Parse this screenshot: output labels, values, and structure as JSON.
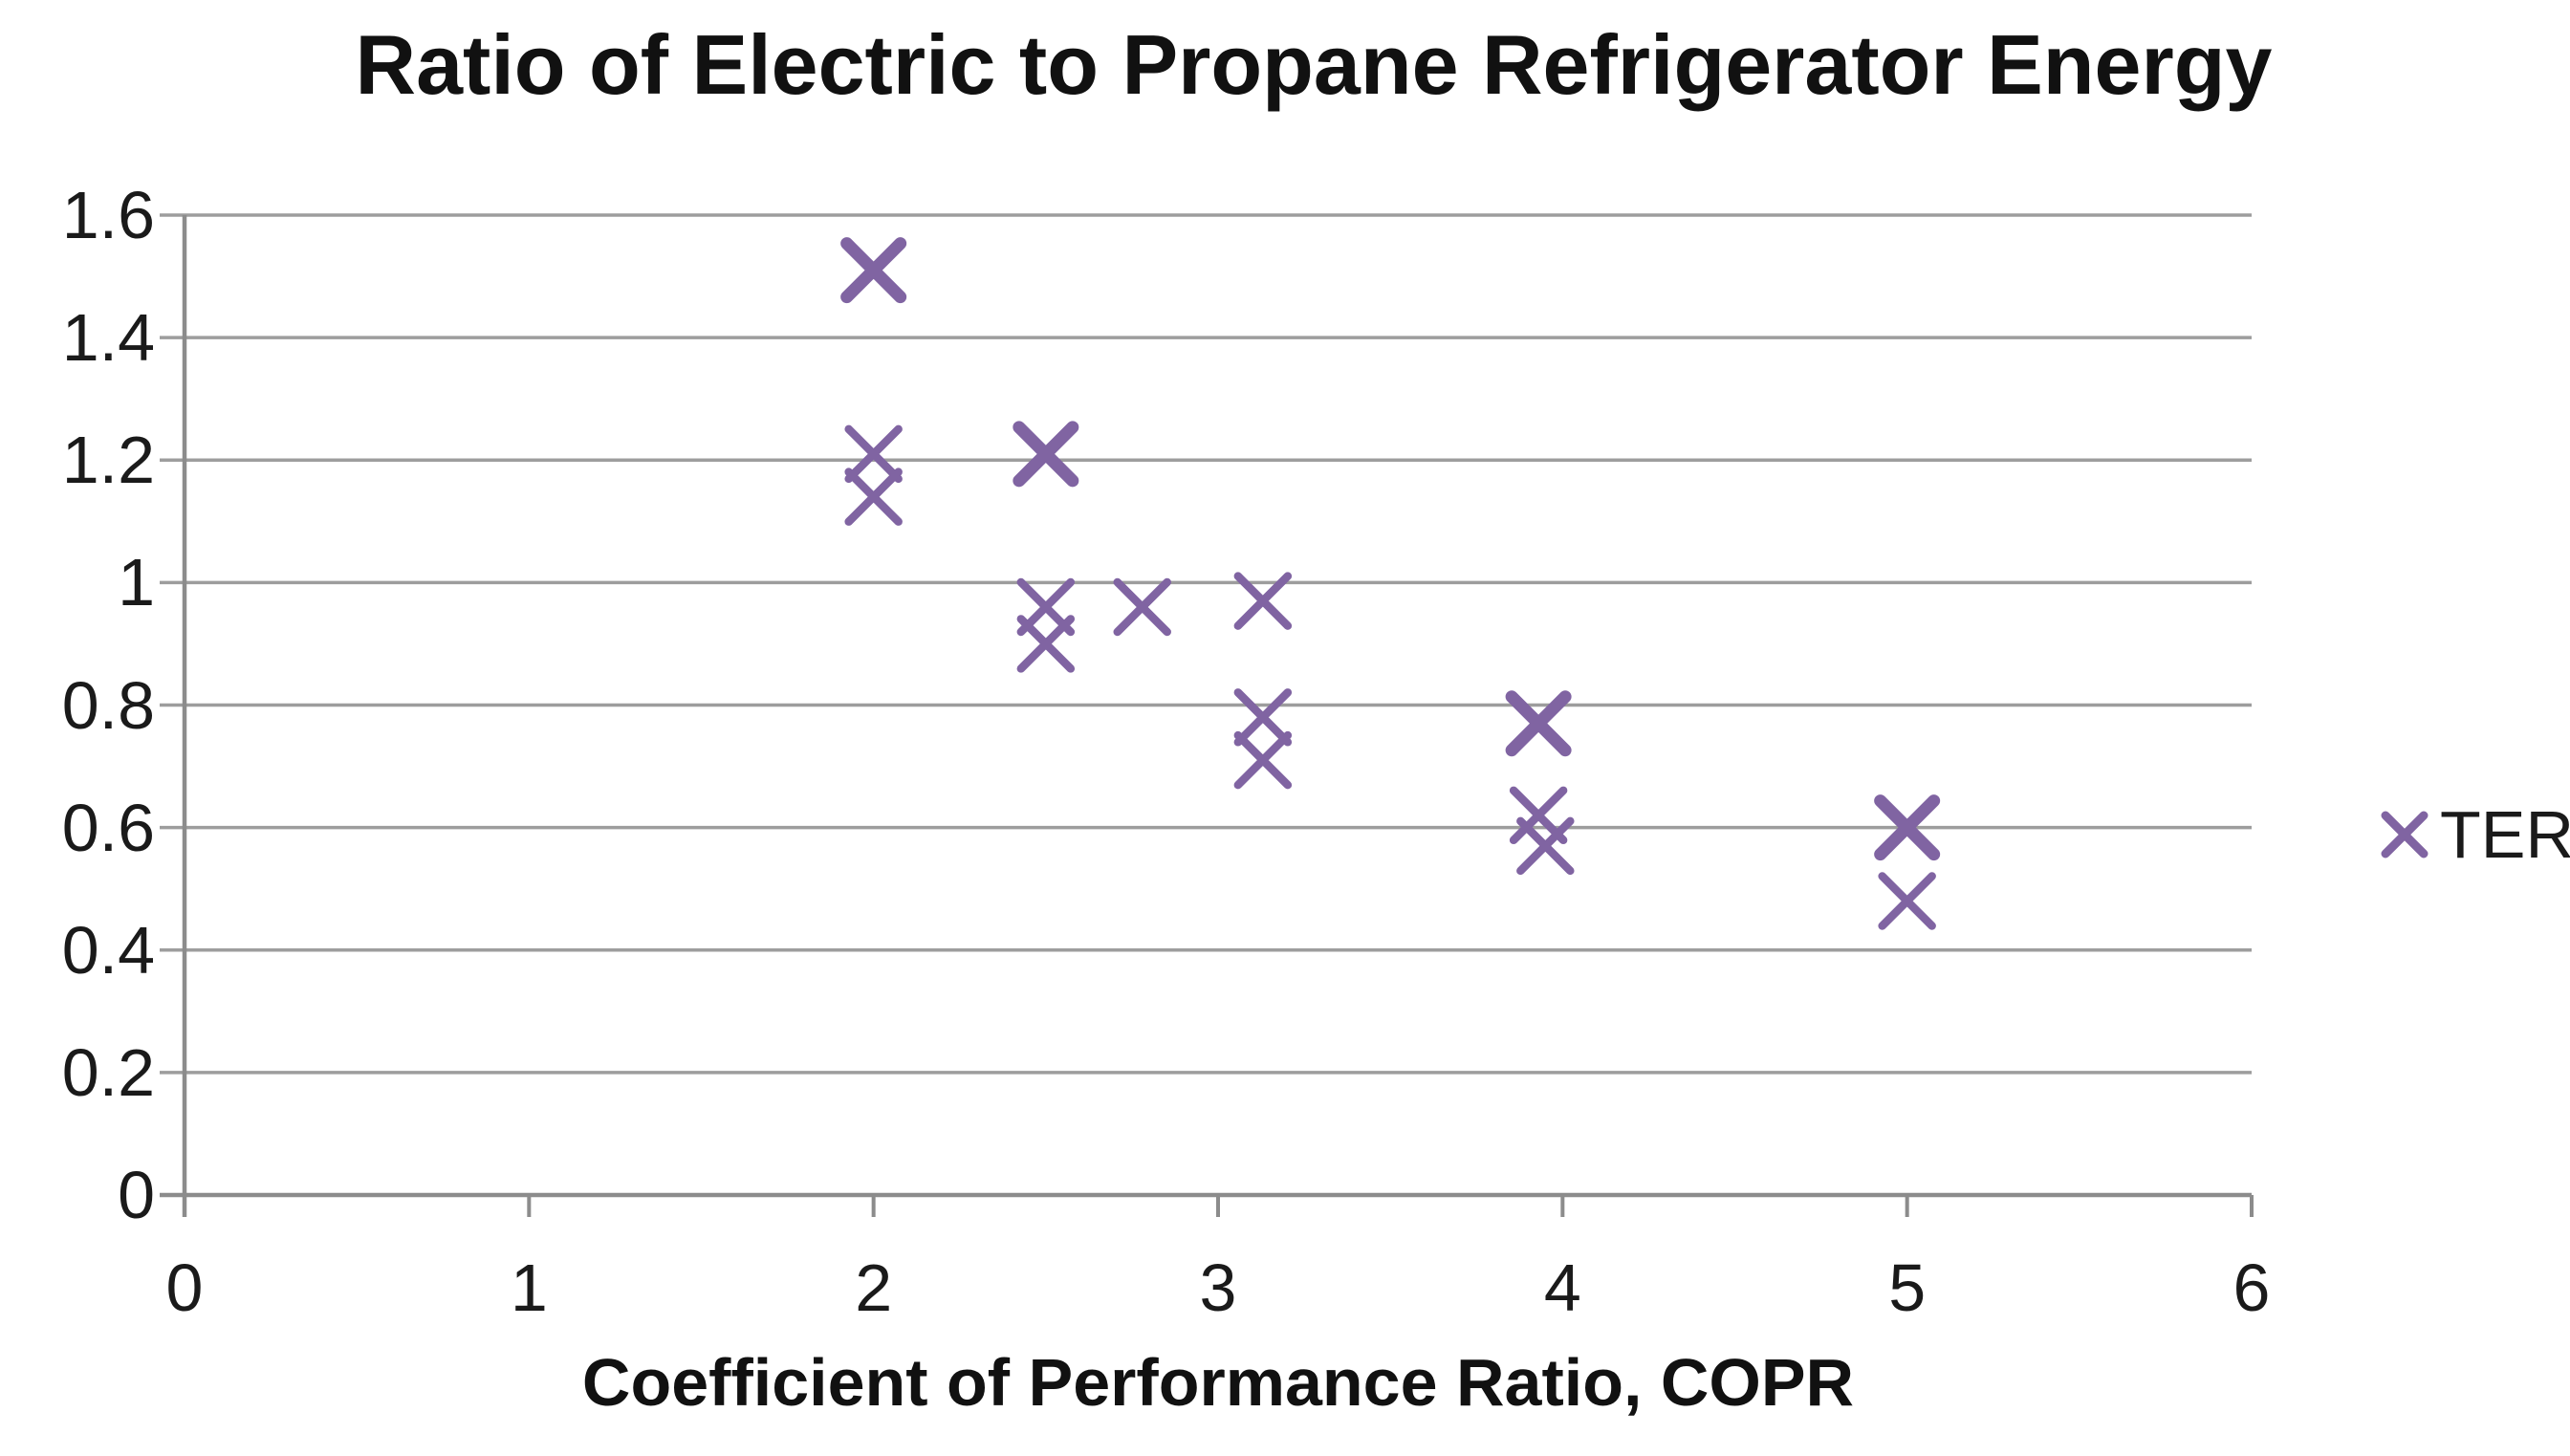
{
  "chart_data": {
    "type": "scatter",
    "title": "Ratio of Electric to Propane Refrigerator Energy",
    "xlabel": "Coefficient of Performance Ratio, COPR",
    "ylabel": "",
    "xlim": [
      0,
      6
    ],
    "ylim": [
      0,
      1.6
    ],
    "x_tick_labels": [
      "0",
      "1",
      "2",
      "3",
      "4",
      "5",
      "6"
    ],
    "x_tick_values": [
      0,
      1,
      2,
      3,
      4,
      5,
      6
    ],
    "y_tick_labels": [
      "0",
      "0.2",
      "0.4",
      "0.6",
      "0.8",
      "1",
      "1.2",
      "1.4",
      "1.6"
    ],
    "y_tick_values": [
      0,
      0.2,
      0.4,
      0.6,
      0.8,
      1,
      1.2,
      1.4,
      1.6
    ],
    "grid": "horizontal-only",
    "legend_position": "right",
    "series": [
      {
        "name": "TER",
        "marker": "x",
        "color": "#8064A2",
        "points": [
          {
            "x": 2.0,
            "y": 1.51,
            "bold": true
          },
          {
            "x": 2.0,
            "y": 1.21,
            "bold": false
          },
          {
            "x": 2.0,
            "y": 1.14,
            "bold": false
          },
          {
            "x": 2.5,
            "y": 1.21,
            "bold": true
          },
          {
            "x": 2.5,
            "y": 0.96,
            "bold": false
          },
          {
            "x": 2.5,
            "y": 0.9,
            "bold": false
          },
          {
            "x": 2.78,
            "y": 0.96,
            "bold": false
          },
          {
            "x": 3.13,
            "y": 0.97,
            "bold": false
          },
          {
            "x": 3.13,
            "y": 0.78,
            "bold": false
          },
          {
            "x": 3.13,
            "y": 0.71,
            "bold": false
          },
          {
            "x": 3.93,
            "y": 0.77,
            "bold": true
          },
          {
            "x": 3.93,
            "y": 0.62,
            "bold": false
          },
          {
            "x": 3.95,
            "y": 0.57,
            "bold": false
          },
          {
            "x": 5.0,
            "y": 0.6,
            "bold": true
          },
          {
            "x": 5.0,
            "y": 0.48,
            "bold": false
          }
        ]
      }
    ]
  },
  "legend": {
    "entries": [
      {
        "label": "TER",
        "marker": "x-marker-icon",
        "color": "#8064A2"
      }
    ]
  },
  "colors": {
    "marker": "#8064A2",
    "gridline": "#9D9D9D",
    "axis_line": "#8C8C8C",
    "title_text": "#111111",
    "tick_text": "#1a1a1a",
    "background": "#ffffff"
  }
}
